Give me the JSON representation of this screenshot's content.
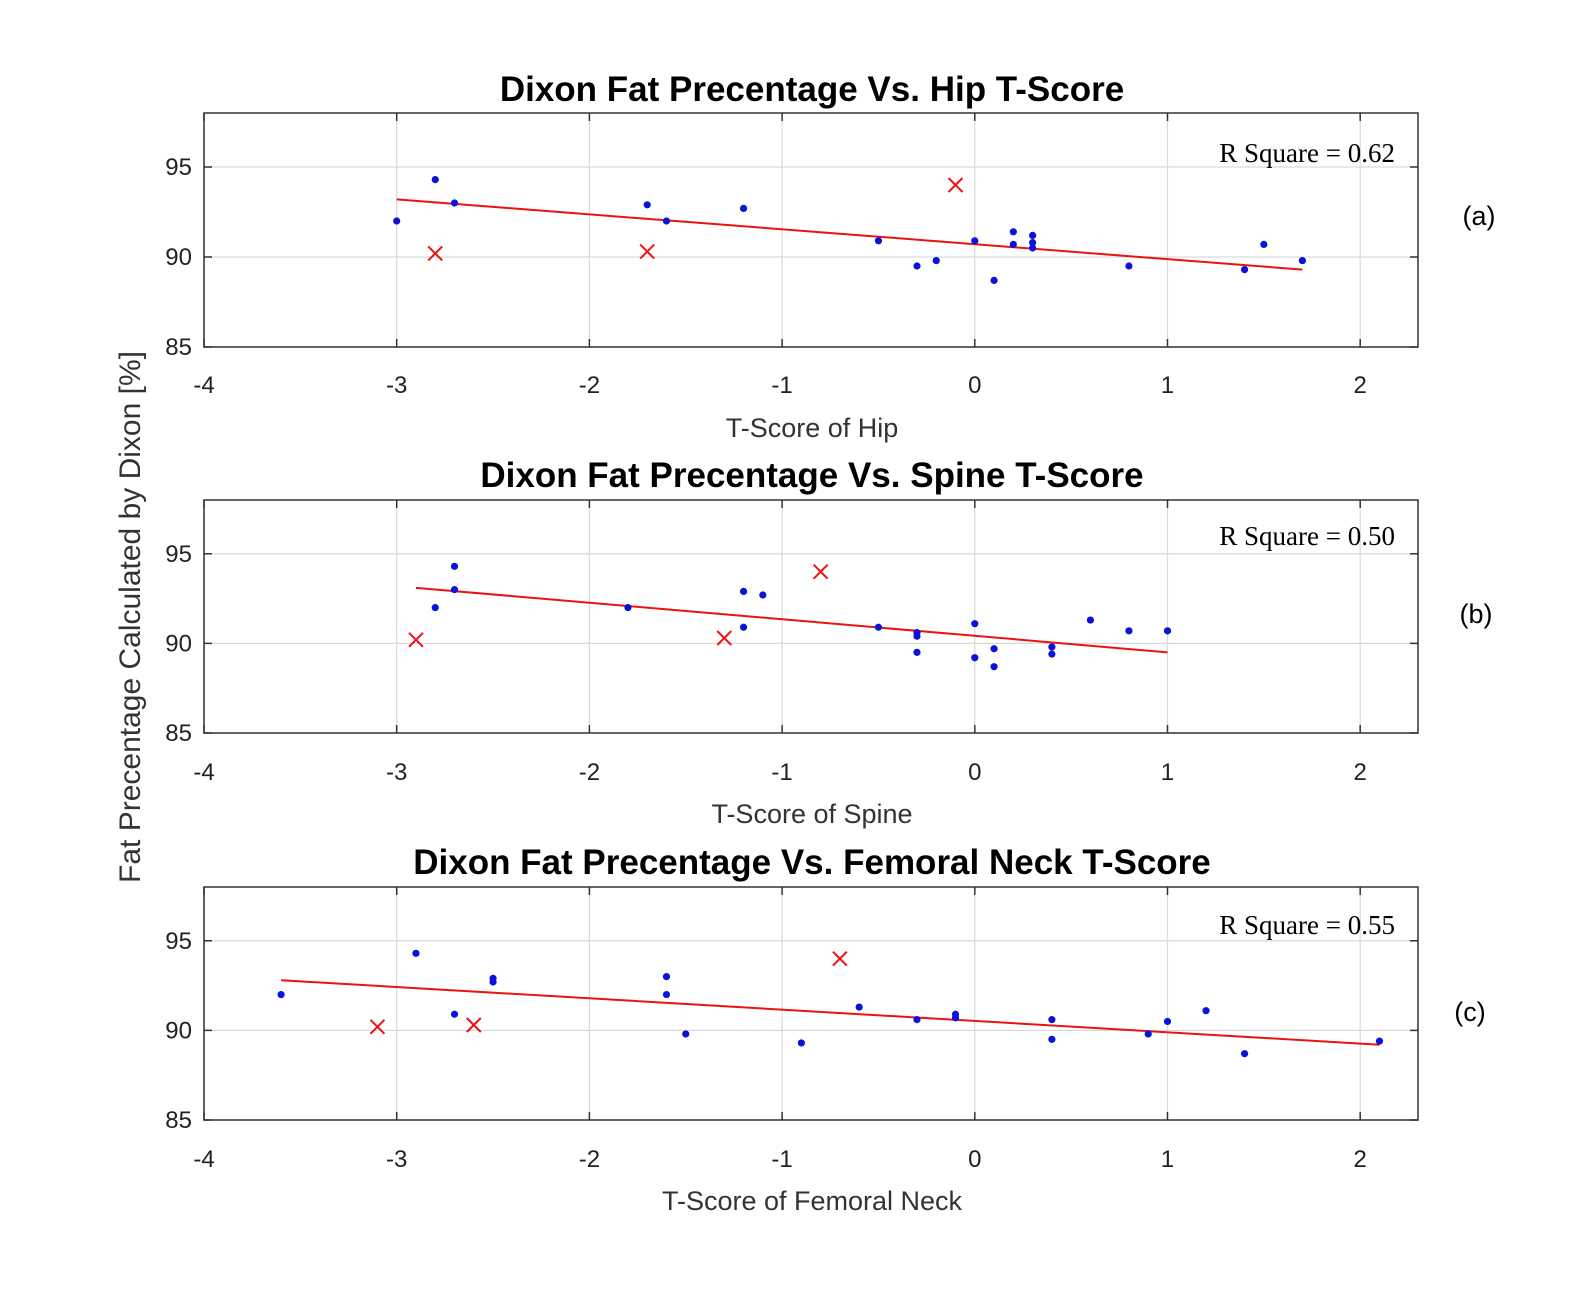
{
  "colors": {
    "points": "#0a14d8",
    "outliers": "#ee1111",
    "fit": "#ee1111",
    "axis": "#333333",
    "grid": "#d9d9d9"
  },
  "chart_data": [
    {
      "type": "scatter",
      "panel": "(a)",
      "title": "Dixon Fat Precentage Vs. Hip T-Score",
      "xlabel": "T-Score of Hip",
      "ylabel": "Fat Precentage Calculated by Dixon [%]",
      "annotation": "R Square = 0.62",
      "xlim": [
        -4,
        2.3
      ],
      "ylim": [
        85,
        98
      ],
      "xticks": [
        -4,
        -3,
        -2,
        -1,
        0,
        1,
        2
      ],
      "yticks": [
        85,
        90,
        95
      ],
      "points": [
        [
          -3.0,
          92.0
        ],
        [
          -2.8,
          94.3
        ],
        [
          -2.7,
          93.0
        ],
        [
          -1.7,
          92.9
        ],
        [
          -1.6,
          92.0
        ],
        [
          -1.2,
          92.7
        ],
        [
          -0.5,
          90.9
        ],
        [
          -0.3,
          89.5
        ],
        [
          -0.2,
          89.8
        ],
        [
          0.0,
          90.9
        ],
        [
          0.1,
          88.7
        ],
        [
          0.2,
          91.4
        ],
        [
          0.2,
          90.7
        ],
        [
          0.3,
          91.2
        ],
        [
          0.3,
          90.8
        ],
        [
          0.3,
          90.5
        ],
        [
          0.8,
          89.5
        ],
        [
          1.4,
          89.3
        ],
        [
          1.5,
          90.7
        ],
        [
          1.7,
          89.8
        ]
      ],
      "outliers": [
        [
          -2.8,
          90.2
        ],
        [
          -1.7,
          90.3
        ],
        [
          -0.1,
          94.0
        ]
      ],
      "fit": [
        [
          -3.0,
          93.2
        ],
        [
          1.7,
          89.3
        ]
      ]
    },
    {
      "type": "scatter",
      "panel": "(b)",
      "title": "Dixon Fat Precentage Vs. Spine T-Score",
      "xlabel": "T-Score of Spine",
      "annotation": "R Square = 0.50",
      "xlim": [
        -4,
        2.3
      ],
      "ylim": [
        85,
        98
      ],
      "xticks": [
        -4,
        -3,
        -2,
        -1,
        0,
        1,
        2
      ],
      "yticks": [
        85,
        90,
        95
      ],
      "points": [
        [
          -2.8,
          92.0
        ],
        [
          -2.7,
          94.3
        ],
        [
          -2.7,
          93.0
        ],
        [
          -1.8,
          92.0
        ],
        [
          -1.2,
          92.9
        ],
        [
          -1.2,
          90.9
        ],
        [
          -1.1,
          92.7
        ],
        [
          -0.5,
          90.9
        ],
        [
          -0.3,
          90.6
        ],
        [
          -0.3,
          90.4
        ],
        [
          -0.3,
          89.5
        ],
        [
          0.0,
          91.1
        ],
        [
          0.0,
          89.2
        ],
        [
          0.1,
          89.7
        ],
        [
          0.1,
          88.7
        ],
        [
          0.4,
          89.8
        ],
        [
          0.4,
          89.4
        ],
        [
          0.6,
          91.3
        ],
        [
          0.8,
          90.7
        ],
        [
          1.0,
          90.7
        ]
      ],
      "outliers": [
        [
          -2.9,
          90.2
        ],
        [
          -1.3,
          90.3
        ],
        [
          -0.8,
          94.0
        ]
      ],
      "fit": [
        [
          -2.9,
          93.1
        ],
        [
          1.0,
          89.5
        ]
      ]
    },
    {
      "type": "scatter",
      "panel": "(c)",
      "title": "Dixon Fat Precentage Vs. Femoral Neck T-Score",
      "xlabel": "T-Score of Femoral Neck",
      "annotation": "R Square = 0.55",
      "xlim": [
        -4,
        2.3
      ],
      "ylim": [
        85,
        98
      ],
      "xticks": [
        -4,
        -3,
        -2,
        -1,
        0,
        1,
        2
      ],
      "yticks": [
        85,
        90,
        95
      ],
      "points": [
        [
          -3.6,
          92.0
        ],
        [
          -2.9,
          94.3
        ],
        [
          -2.7,
          90.9
        ],
        [
          -2.5,
          92.9
        ],
        [
          -2.5,
          92.7
        ],
        [
          -1.6,
          93.0
        ],
        [
          -1.6,
          92.0
        ],
        [
          -1.5,
          89.8
        ],
        [
          -0.9,
          89.3
        ],
        [
          -0.6,
          91.3
        ],
        [
          -0.3,
          90.6
        ],
        [
          -0.1,
          90.9
        ],
        [
          -0.1,
          90.7
        ],
        [
          0.4,
          90.6
        ],
        [
          0.4,
          89.5
        ],
        [
          0.9,
          89.8
        ],
        [
          1.0,
          90.5
        ],
        [
          1.2,
          91.1
        ],
        [
          1.4,
          88.7
        ],
        [
          2.1,
          89.4
        ]
      ],
      "outliers": [
        [
          -3.1,
          90.2
        ],
        [
          -2.6,
          90.3
        ],
        [
          -0.7,
          94.0
        ]
      ],
      "fit": [
        [
          -3.6,
          92.8
        ],
        [
          2.1,
          89.2
        ]
      ]
    }
  ]
}
